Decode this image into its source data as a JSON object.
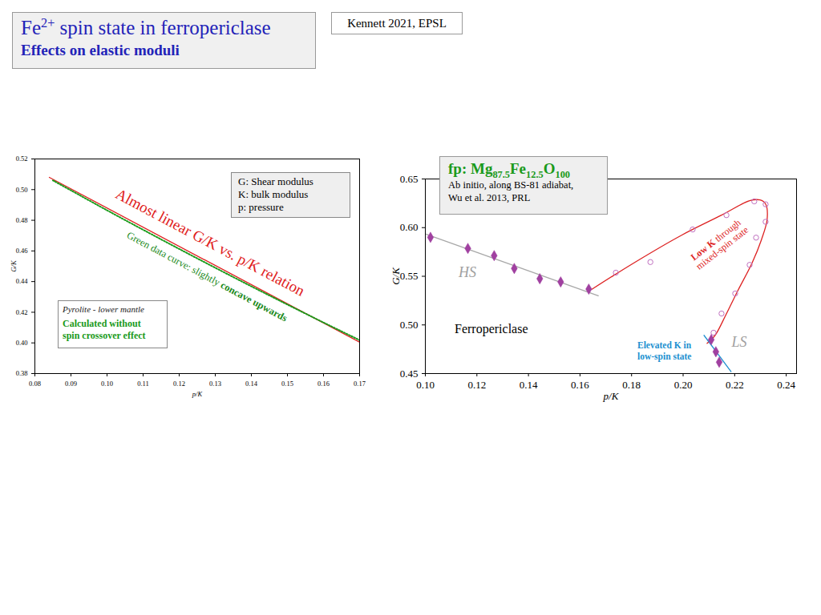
{
  "slide": {
    "title": [
      {
        "text": "Fe"
      },
      {
        "sup": "2+"
      },
      {
        "text": " spin state in ferropericlase"
      }
    ],
    "subtitle": "Effects on elastic moduli",
    "citation": "Kennett 2021, EPSL"
  },
  "chart_data": [
    {
      "type": "line",
      "xlabel": "p/K",
      "ylabel": "G/K",
      "xlim": [
        0.08,
        0.17
      ],
      "ylim": [
        0.38,
        0.52
      ],
      "xticks": [
        0.08,
        0.09,
        {
          "value": 0.1,
          "label": "0.10"
        },
        0.11,
        0.12,
        0.13,
        0.14,
        0.15,
        0.16,
        0.17
      ],
      "yticks": [
        0.38,
        {
          "value": 0.4,
          "label": "0.40"
        },
        0.42,
        0.44,
        0.46,
        0.48,
        {
          "value": 0.5,
          "label": "0.50"
        },
        0.52
      ],
      "series": [
        {
          "color": "#e02020",
          "line_style": "solid",
          "x": [
            0.084,
            0.172
          ],
          "values": [
            0.508,
            0.398
          ]
        },
        {
          "color": "#1a9a1a",
          "line_style": "dotted",
          "x": [
            0.085,
            0.09,
            0.1,
            0.11,
            0.12,
            0.13,
            0.14,
            0.15,
            0.16,
            0.17
          ],
          "values": [
            0.506,
            0.4995,
            0.4865,
            0.4738,
            0.4613,
            0.449,
            0.4369,
            0.425,
            0.4133,
            0.4018
          ]
        }
      ],
      "annotations": {
        "key": [
          "G: Shear modulus",
          "K: bulk modulus",
          "p: pressure"
        ],
        "trend": "Almost linear G/K vs. p/K relation",
        "curve": [
          {
            "text": "Green data curve: slightly "
          },
          {
            "bold": "concave upwards"
          }
        ],
        "model": "Pyrolite - lower mantle",
        "note": [
          "Calculated without",
          "spin crossover effect"
        ]
      }
    },
    {
      "type": "scatter",
      "xlabel": "p/K",
      "ylabel": "G/K",
      "xlim": [
        0.1,
        0.244
      ],
      "ylim": [
        0.45,
        0.65
      ],
      "xticks": [
        {
          "value": 0.1,
          "label": "0.10"
        },
        0.12,
        0.14,
        0.16,
        0.18,
        {
          "value": 0.2,
          "label": "0.20"
        },
        0.22,
        0.24
      ],
      "yticks": [
        0.45,
        {
          "value": 0.5,
          "label": "0.50"
        },
        0.55,
        {
          "value": 0.6,
          "label": "0.60"
        },
        0.65
      ],
      "series": [
        {
          "type": "line",
          "color": "#a8a8a8",
          "line_style": "solid",
          "x": [
            0.1,
            0.1671
          ],
          "values": [
            0.5935,
            0.53
          ]
        },
        {
          "type": "line",
          "color": "#dd2222",
          "line_style": "solid",
          "x": [
            0.1646,
            0.1807,
            0.1994,
            0.2149,
            0.2258,
            0.2298,
            0.232,
            0.2326,
            0.2304,
            0.2267,
            0.2211,
            0.2165,
            0.2124,
            0.2093
          ],
          "values": [
            0.5366,
            0.5634,
            0.5922,
            0.6128,
            0.6276,
            0.6284,
            0.6243,
            0.6086,
            0.5877,
            0.5634,
            0.5346,
            0.5099,
            0.4893,
            0.481
          ]
        },
        {
          "type": "line",
          "color": "#2090d0",
          "line_style": "solid",
          "x": [
            0.2081,
            0.2186
          ],
          "values": [
            0.4893,
            0.452
          ]
        },
        {
          "type": "scatter",
          "color": "#a040a0",
          "marker": "diamond",
          "x": [
            0.102,
            0.1165,
            0.1267,
            0.1345,
            0.1444,
            0.1525,
            0.1634
          ],
          "values": [
            0.59,
            0.5786,
            0.5712,
            0.558,
            0.5475,
            0.5442,
            0.5368
          ]
        },
        {
          "type": "scatter",
          "color": "#c070c0",
          "marker": "circle-open",
          "x": [
            0.1739,
            0.1873,
            0.2037,
            0.2168,
            0.2276,
            0.232,
            0.232,
            0.2283,
            0.2258,
            0.2202,
            0.2149,
            0.2118
          ],
          "values": [
            0.5537,
            0.5646,
            0.5981,
            0.6128,
            0.627,
            0.624,
            0.606,
            0.5897,
            0.5617,
            0.5323,
            0.5117,
            0.492
          ]
        },
        {
          "type": "scatter",
          "color": "#a040a0",
          "marker": "diamond",
          "x": [
            0.2109,
            0.2127,
            0.214
          ],
          "values": [
            0.4848,
            0.4724,
            0.4617
          ]
        }
      ],
      "annotations": {
        "hs": "HS",
        "ls": "LS",
        "mineral": "Ferropericlase",
        "low_k": [
          [
            {
              "bold": "Low K"
            },
            {
              "text": " through"
            }
          ],
          [
            {
              "text": "mixed-spin state"
            }
          ]
        ],
        "elevated": [
          "Elevated K in",
          "low-spin state"
        ],
        "box": {
          "formula": [
            {
              "text": "fp: Mg"
            },
            {
              "sub": "87.5"
            },
            {
              "text": "Fe"
            },
            {
              "sub": "12.5"
            },
            {
              "text": "O"
            },
            {
              "sub": "100"
            }
          ],
          "lines": [
            "Ab initio, along BS-81 adiabat,",
            "Wu et al. 2013, PRL"
          ]
        }
      }
    }
  ]
}
